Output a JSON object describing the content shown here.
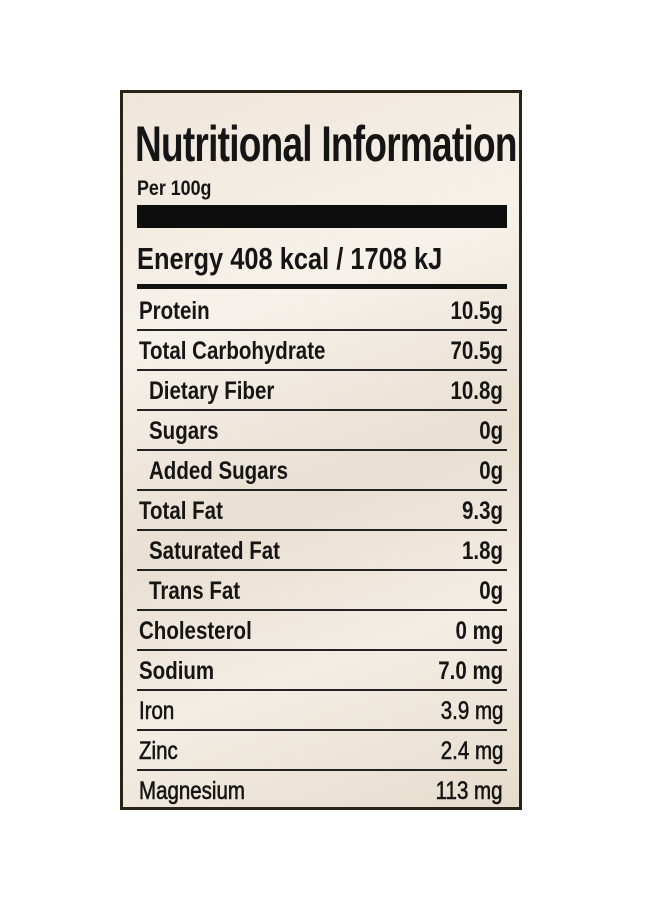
{
  "label": {
    "title": "Nutritional Information",
    "subtitle": "Per 100g",
    "energy": "Energy 408 kcal / 1708 kJ",
    "rows": [
      [
        "Protein",
        "10.5g"
      ],
      [
        "Total Carbohydrate",
        "70.5g"
      ],
      [
        "Dietary Fiber",
        "10.8g"
      ],
      [
        "Sugars",
        "0g"
      ],
      [
        "Added Sugars",
        "0g"
      ],
      [
        "Total Fat",
        "9.3g"
      ],
      [
        "Saturated Fat",
        "1.8g"
      ],
      [
        "Trans Fat",
        "0g"
      ],
      [
        "Cholesterol",
        "0 mg"
      ],
      [
        "Sodium",
        "7.0 mg"
      ],
      [
        "Iron",
        "3.9 mg"
      ],
      [
        "Zinc",
        "2.4 mg"
      ],
      [
        "Magnesium",
        "113 mg"
      ]
    ]
  }
}
